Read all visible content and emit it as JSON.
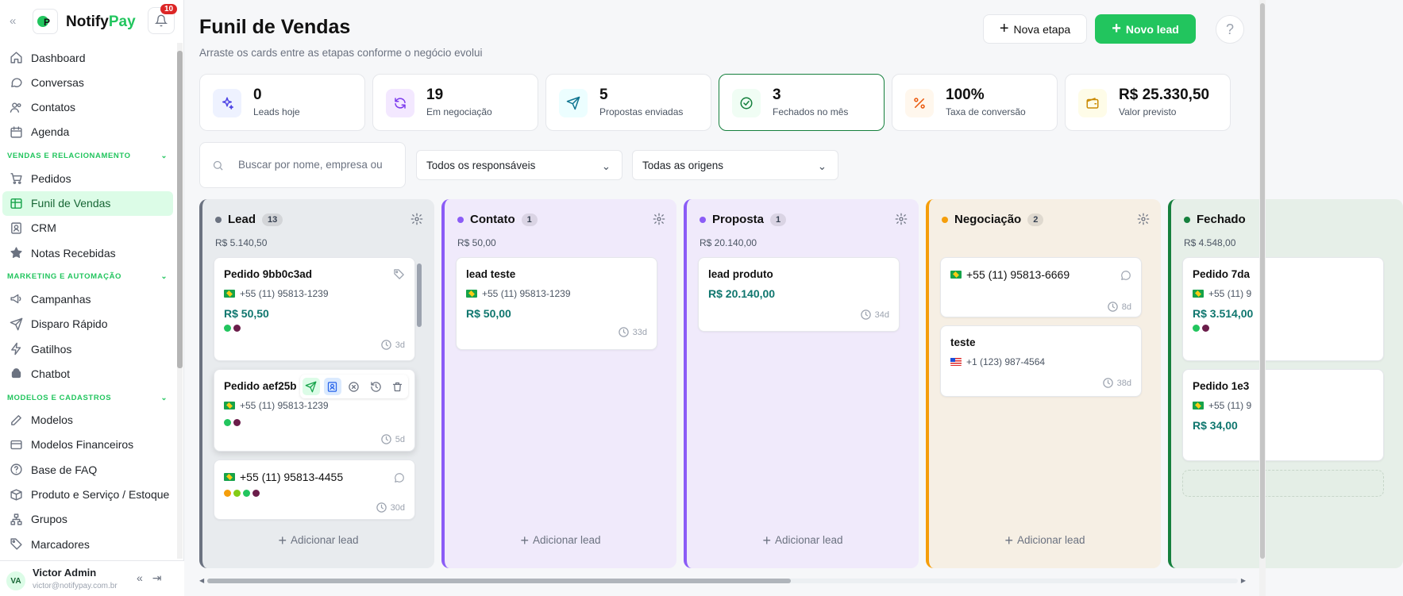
{
  "brand": {
    "name_start": "Notify",
    "name_end": "Pay",
    "notifications": "10"
  },
  "sidebar": {
    "items_top": [
      {
        "label": "Dashboard",
        "icon": "home-icon"
      },
      {
        "label": "Conversas",
        "icon": "chat-icon"
      },
      {
        "label": "Contatos",
        "icon": "users-icon"
      },
      {
        "label": "Agenda",
        "icon": "calendar-icon"
      }
    ],
    "sections": [
      {
        "title": "VENDAS E RELACIONAMENTO",
        "items": [
          {
            "label": "Pedidos",
            "icon": "cart-icon"
          },
          {
            "label": "Funil de Vendas",
            "icon": "kanban-icon",
            "active": true
          },
          {
            "label": "CRM",
            "icon": "contact-card-icon"
          },
          {
            "label": "Notas Recebidas",
            "icon": "star-icon"
          }
        ]
      },
      {
        "title": "MARKETING E AUTOMAÇÃO",
        "items": [
          {
            "label": "Campanhas",
            "icon": "megaphone-icon"
          },
          {
            "label": "Disparo Rápido",
            "icon": "send-icon"
          },
          {
            "label": "Gatilhos",
            "icon": "bolt-icon"
          },
          {
            "label": "Chatbot",
            "icon": "android-icon"
          }
        ]
      },
      {
        "title": "MODELOS E CADASTROS",
        "items": [
          {
            "label": "Modelos",
            "icon": "edit-icon"
          },
          {
            "label": "Modelos Financeiros",
            "icon": "finance-icon"
          },
          {
            "label": "Base de FAQ",
            "icon": "question-icon"
          },
          {
            "label": "Produto e Serviço / Estoque",
            "icon": "box-icon"
          },
          {
            "label": "Grupos",
            "icon": "hierarchy-icon"
          },
          {
            "label": "Marcadores",
            "icon": "tag-icon"
          }
        ]
      }
    ]
  },
  "user": {
    "initials": "VA",
    "name": "Victor Admin",
    "email": "victor@notifypay.com.br"
  },
  "header": {
    "title": "Funil de Vendas",
    "subtitle": "Arraste os cards entre as etapas conforme o negócio evolui",
    "new_stage": "Nova etapa",
    "new_lead": "Novo lead",
    "help": "?"
  },
  "stats": [
    {
      "value": "0",
      "label": "Leads hoje",
      "icon": "sparkles-icon",
      "bg": "#eef2ff",
      "fg": "#4f46e5"
    },
    {
      "value": "19",
      "label": "Em negociação",
      "icon": "refresh-icon",
      "bg": "#f3e8ff",
      "fg": "#7c3aed"
    },
    {
      "value": "5",
      "label": "Propostas enviadas",
      "icon": "send-icon",
      "bg": "#ecfeff",
      "fg": "#0e7490"
    },
    {
      "value": "3",
      "label": "Fechados no mês",
      "icon": "check-circle-icon",
      "bg": "#f0fdf4",
      "fg": "#15803d",
      "highlight": true
    },
    {
      "value": "100%",
      "label": "Taxa de conversão",
      "icon": "percent-icon",
      "bg": "#fff7ed",
      "fg": "#ea580c"
    },
    {
      "value": "R$ 25.330,50",
      "label": "Valor previsto",
      "icon": "wallet-icon",
      "bg": "#fefce8",
      "fg": "#ca8a04"
    }
  ],
  "filters": {
    "search_placeholder": "Buscar por nome, empresa ou",
    "responsible": "Todos os responsáveis",
    "origin": "Todas as origens"
  },
  "columns": [
    {
      "name": "Lead",
      "count": "13",
      "total": "R$ 5.140,50",
      "color": "#6b7280",
      "bg": "#e8ebee",
      "add": "Adicionar lead",
      "cards": [
        {
          "title": "Pedido 9bb0c3ad",
          "phone": "+55 (11) 95813-1239",
          "value": "R$ 50,50",
          "dots": [
            "#22c55e",
            "#6b1d4a"
          ],
          "age": "3d",
          "tag": true
        },
        {
          "title": "Pedido aef25b",
          "phone": "+55 (11) 95813-1239",
          "dots": [
            "#22c55e",
            "#6b1d4a"
          ],
          "age": "5d",
          "toolbar": true
        },
        {
          "phone_big": "+55 (11) 95813-4455",
          "dots": [
            "#f59e0b",
            "#84cc16",
            "#22c55e",
            "#6b1d4a"
          ],
          "age": "30d",
          "wa": true
        }
      ]
    },
    {
      "name": "Contato",
      "count": "1",
      "total": "R$ 50,00",
      "color": "#8b5cf6",
      "bg": "#f0eafb",
      "add": "Adicionar lead",
      "cards": [
        {
          "title": "lead teste",
          "phone": "+55 (11) 95813-1239",
          "value": "R$ 50,00",
          "age": "33d"
        }
      ]
    },
    {
      "name": "Proposta",
      "count": "1",
      "total": "R$ 20.140,00",
      "color": "#8b5cf6",
      "bg": "#f0eafb",
      "add": "Adicionar lead",
      "cards": [
        {
          "title": "lead produto",
          "value": "R$ 20.140,00",
          "age": "34d"
        }
      ]
    },
    {
      "name": "Negociação",
      "count": "2",
      "total": "",
      "color": "#f59e0b",
      "bg": "#f6efe4",
      "add": "Adicionar lead",
      "cards": [
        {
          "phone_big": "+55 (11) 95813-6669",
          "age": "8d",
          "wa": true
        },
        {
          "title": "teste",
          "phone": "+1 (123) 987-4564",
          "flag": "us",
          "age": "38d"
        }
      ]
    },
    {
      "name": "Fechado",
      "total": "R$ 4.548,00",
      "color": "#15803d",
      "bg": "#e6efe8",
      "add": "",
      "cards": [
        {
          "title": "Pedido 7da",
          "phone": "+55 (11) 9",
          "value": "R$ 3.514,00",
          "dots": [
            "#22c55e",
            "#6b1d4a"
          ]
        },
        {
          "title": "Pedido 1e3",
          "phone": "+55 (11) 9",
          "value": "R$ 34,00"
        }
      ]
    }
  ]
}
